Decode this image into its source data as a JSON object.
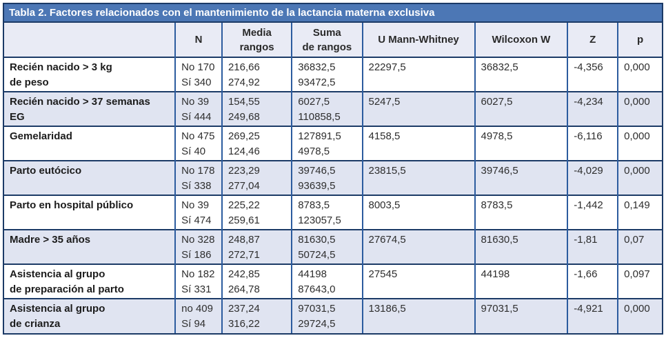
{
  "title": "Tabla 2. Factores relacionados con el mantenimiento de la lactancia materna exclusiva",
  "colors": {
    "title_bar_bg": "#4c77b5",
    "title_text": "#ffffff",
    "outer_border": "#1b3a66",
    "vertical_rule": "#2b5b9e",
    "header_bg": "#e9ebf5",
    "stripe_row_bg": "#e0e4f1",
    "plain_row_bg": "#ffffff"
  },
  "table": {
    "columns": [
      "",
      "N",
      "Media\nrangos",
      "Suma\nde rangos",
      "U Mann-Whitney",
      "Wilcoxon W",
      "Z",
      "p"
    ],
    "rows": [
      {
        "factor": "Recién nacido > 3 kg\nde peso",
        "n": "No 170\nSí 340",
        "media_rangos": "216,66\n274,92",
        "suma_rangos": "36832,5\n93472,5",
        "u_mann_whitney": "22297,5",
        "wilcoxon_w": "36832,5",
        "z": "-4,356",
        "p": "0,000"
      },
      {
        "factor": "Recién nacido > 37 semanas\nEG",
        "n": "No 39\nSí 444",
        "media_rangos": "154,55\n249,68",
        "suma_rangos": "6027,5\n110858,5",
        "u_mann_whitney": "5247,5",
        "wilcoxon_w": "6027,5",
        "z": "-4,234",
        "p": "0,000"
      },
      {
        "factor": "Gemelaridad",
        "n": "No 475\nSí 40",
        "media_rangos": "269,25\n124,46",
        "suma_rangos": "127891,5\n4978,5",
        "u_mann_whitney": "4158,5",
        "wilcoxon_w": "4978,5",
        "z": "-6,116",
        "p": "0,000"
      },
      {
        "factor": "Parto eutócico",
        "n": "No 178\nSí 338",
        "media_rangos": "223,29\n277,04",
        "suma_rangos": "39746,5\n93639,5",
        "u_mann_whitney": "23815,5",
        "wilcoxon_w": "39746,5",
        "z": "-4,029",
        "p": "0,000"
      },
      {
        "factor": "Parto en hospital público",
        "n": "No 39\nSí 474",
        "media_rangos": "225,22\n259,61",
        "suma_rangos": "8783,5\n123057,5",
        "u_mann_whitney": "8003,5",
        "wilcoxon_w": "8783,5",
        "z": "-1,442",
        "p": "0,149"
      },
      {
        "factor": "Madre > 35 años",
        "n": "No 328\nSí 186",
        "media_rangos": "248,87\n272,71",
        "suma_rangos": "81630,5\n50724,5",
        "u_mann_whitney": "27674,5",
        "wilcoxon_w": "81630,5",
        "z": "-1,81",
        "p": "0,07"
      },
      {
        "factor": "Asistencia al grupo\nde preparación al parto",
        "n": "No 182\nSí 331",
        "media_rangos": "242,85\n264,78",
        "suma_rangos": "44198\n87643,0",
        "u_mann_whitney": "27545",
        "wilcoxon_w": "44198",
        "z": "-1,66",
        "p": "0,097"
      },
      {
        "factor": "Asistencia al grupo\nde crianza",
        "n": "no 409\nSí 94",
        "media_rangos": "237,24\n316,22",
        "suma_rangos": "97031,5\n29724,5",
        "u_mann_whitney": "13186,5",
        "wilcoxon_w": "97031,5",
        "z": "-4,921",
        "p": "0,000"
      }
    ]
  }
}
